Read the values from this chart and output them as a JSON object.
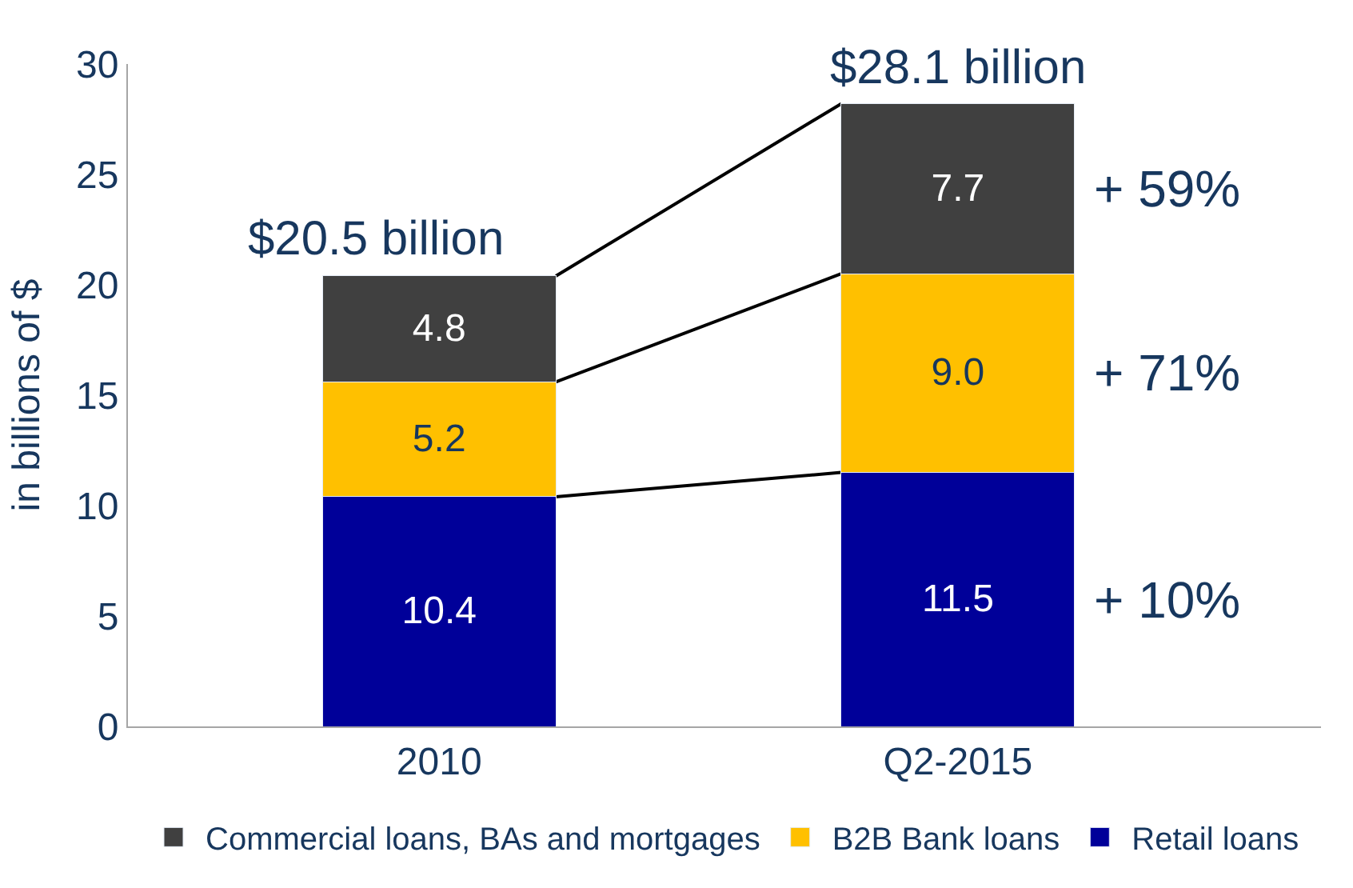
{
  "chart_data": {
    "type": "bar",
    "stacked": true,
    "ylabel": "in billions of $",
    "categories": [
      "2010",
      "Q2-2015"
    ],
    "series": [
      {
        "name": "Retail loans",
        "color": "#000099",
        "values": [
          10.4,
          11.5
        ],
        "value_labels": [
          "10.4",
          "11.5"
        ]
      },
      {
        "name": "B2B Bank loans",
        "color": "#ffc000",
        "values": [
          5.2,
          9.0
        ],
        "value_labels": [
          "5.2",
          "9.0"
        ]
      },
      {
        "name": "Commercial loans, BAs and mortgages",
        "color": "#404040",
        "values": [
          4.8,
          7.7
        ],
        "value_labels": [
          "4.8",
          "7.7"
        ]
      }
    ],
    "totals": [
      "$20.5 billion",
      "$28.1 billion"
    ],
    "annotations": [
      "+ 10%",
      "+ 71%",
      "+ 59%"
    ],
    "ylim": [
      0,
      30
    ],
    "yticks": [
      0,
      5,
      10,
      15,
      20,
      25,
      30
    ],
    "grid": false,
    "legend": "bottom"
  }
}
